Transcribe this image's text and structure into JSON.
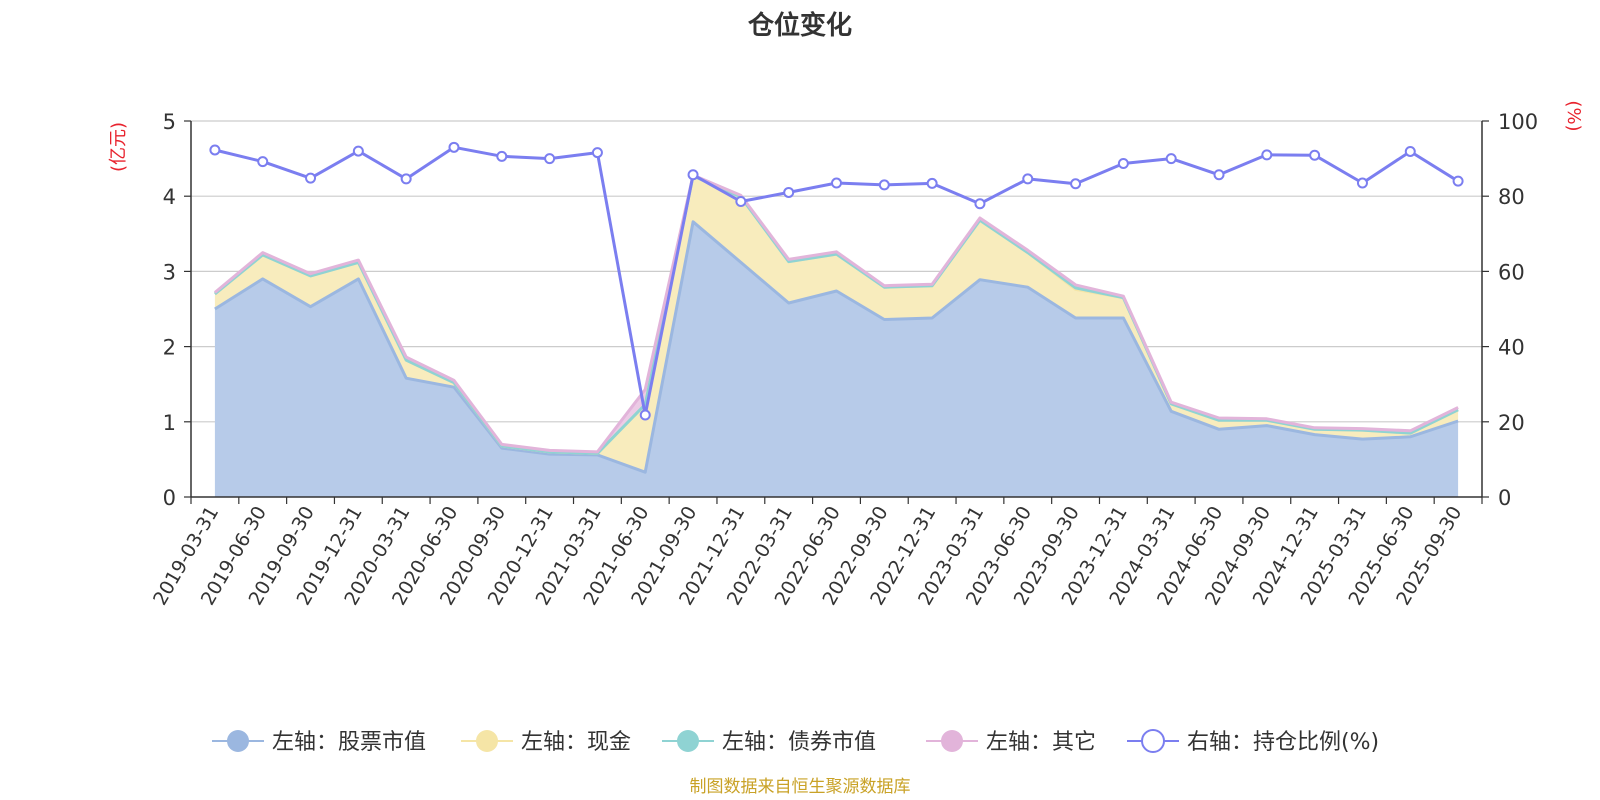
{
  "chart_data": {
    "type": "area",
    "title": "仓位变化",
    "left_axis": {
      "unit": "(亿元)",
      "ylim": [
        0,
        5
      ],
      "ticks": [
        "0",
        "1",
        "2",
        "3",
        "4",
        "5"
      ]
    },
    "right_axis": {
      "unit": "(%)",
      "ylim": [
        0,
        100
      ],
      "ticks": [
        "0",
        "20",
        "40",
        "60",
        "80",
        "100"
      ]
    },
    "categories": [
      "2019-03-31",
      "2019-06-30",
      "2019-09-30",
      "2019-12-31",
      "2020-03-31",
      "2020-06-30",
      "2020-09-30",
      "2020-12-31",
      "2021-03-31",
      "2021-06-30",
      "2021-09-30",
      "2021-12-31",
      "2022-03-31",
      "2022-06-30",
      "2022-09-30",
      "2022-12-31",
      "2023-03-31",
      "2023-06-30",
      "2023-09-30",
      "2023-12-31",
      "2024-03-31",
      "2024-06-30",
      "2024-09-30",
      "2024-12-31",
      "2025-03-31",
      "2025-06-30",
      "2025-09-30"
    ],
    "series": [
      {
        "name": "左轴：股票市值",
        "axis": "left",
        "stack": true,
        "color": "#9bb7e0",
        "fill": "#b7cbe9",
        "values": [
          2.5,
          2.9,
          2.53,
          2.9,
          1.58,
          1.46,
          0.65,
          0.57,
          0.56,
          0.33,
          3.66,
          3.12,
          2.58,
          2.74,
          2.36,
          2.38,
          2.89,
          2.79,
          2.38,
          2.38,
          1.14,
          0.9,
          0.95,
          0.83,
          0.77,
          0.8,
          1.01
        ]
      },
      {
        "name": "左轴：现金",
        "axis": "left",
        "stack": true,
        "color": "#f5e5a6",
        "fill": "#f8ecbd",
        "values": [
          0.2,
          0.32,
          0.41,
          0.22,
          0.24,
          0.06,
          0.03,
          0.03,
          0.02,
          0.9,
          0.61,
          0.87,
          0.55,
          0.49,
          0.43,
          0.43,
          0.79,
          0.46,
          0.38,
          0.27,
          0.1,
          0.12,
          0.07,
          0.07,
          0.12,
          0.05,
          0.15
        ]
      },
      {
        "name": "左轴：债券市值",
        "axis": "left",
        "stack": true,
        "color": "#8fd3d3",
        "fill": "#a8dcdc",
        "values": [
          0,
          0,
          0,
          0,
          0,
          0,
          0,
          0,
          0,
          0,
          0,
          0,
          0,
          0,
          0,
          0,
          0,
          0,
          0.02,
          0,
          0,
          0,
          0,
          0,
          0,
          0,
          0
        ]
      },
      {
        "name": "左轴：其它",
        "axis": "left",
        "stack": true,
        "color": "#e2b4da",
        "fill": "#eccbe6",
        "values": [
          0.02,
          0.03,
          0.03,
          0.03,
          0.04,
          0.03,
          0.02,
          0.02,
          0.02,
          0.2,
          0.01,
          0.02,
          0.03,
          0.03,
          0.02,
          0.02,
          0.03,
          0.03,
          0.04,
          0.02,
          0.02,
          0.03,
          0.02,
          0.02,
          0.02,
          0.03,
          0.03
        ]
      },
      {
        "name": "右轴：持仓比例(%)",
        "axis": "right",
        "stack": false,
        "color": "#7b7ef0",
        "values": [
          92.3,
          89.2,
          84.8,
          92.0,
          84.6,
          93.0,
          90.6,
          90.0,
          91.6,
          21.8,
          85.7,
          78.6,
          81.0,
          83.5,
          83.0,
          83.4,
          78.0,
          84.6,
          83.3,
          88.7,
          90.0,
          85.7,
          91.0,
          90.9,
          83.5,
          91.9,
          84.0
        ]
      }
    ],
    "legend_position": "bottom",
    "grid": true
  },
  "footer": {
    "source": "制图数据来自恒生聚源数据库"
  },
  "colors": {
    "axis_unit": "#e8232e",
    "source_text": "#c9a227",
    "grid": "#cccccc",
    "axis_line": "#333333"
  }
}
